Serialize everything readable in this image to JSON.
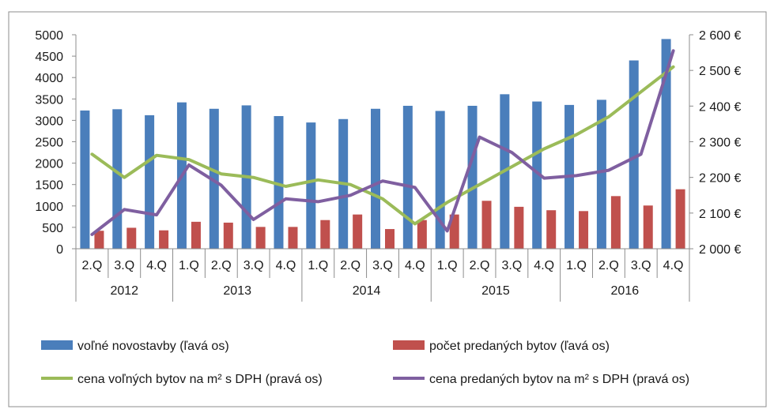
{
  "chart_data": {
    "type": "bar",
    "title": "",
    "quarters": [
      "2.Q",
      "3.Q",
      "4.Q",
      "1.Q",
      "2.Q",
      "3.Q",
      "4.Q",
      "1.Q",
      "2.Q",
      "3.Q",
      "4.Q",
      "1.Q",
      "2.Q",
      "3.Q",
      "4.Q",
      "1.Q",
      "2.Q",
      "3.Q",
      "4.Q"
    ],
    "years": [
      {
        "label": "2012",
        "span": 3
      },
      {
        "label": "2013",
        "span": 4
      },
      {
        "label": "2014",
        "span": 4
      },
      {
        "label": "2015",
        "span": 4
      },
      {
        "label": "2016",
        "span": 4
      }
    ],
    "left_axis": {
      "min": 0,
      "max": 5000,
      "step": 500,
      "ticks": [
        "0",
        "500",
        "1000",
        "1500",
        "2000",
        "2500",
        "3000",
        "3500",
        "4000",
        "4500",
        "5000"
      ]
    },
    "right_axis": {
      "min": 2000,
      "max": 2600,
      "step": 100,
      "ticks": [
        "2 000 €",
        "2 100 €",
        "2 200 €",
        "2 300 €",
        "2 400 €",
        "2 500 €",
        "2 600 €"
      ]
    },
    "series": [
      {
        "name": "voľné novostavby (ľavá os)",
        "kind": "bar",
        "axis": "left",
        "color": "#4a7ebb",
        "values": [
          3230,
          3260,
          3120,
          3420,
          3270,
          3350,
          3100,
          2950,
          3030,
          3270,
          3340,
          3220,
          3340,
          3610,
          3440,
          3360,
          3480,
          4400,
          4900
        ]
      },
      {
        "name": "počet predaných bytov (ľavá os)",
        "kind": "bar",
        "axis": "left",
        "color": "#c0504d",
        "values": [
          420,
          490,
          430,
          630,
          610,
          510,
          510,
          670,
          800,
          460,
          670,
          800,
          1120,
          980,
          900,
          880,
          1230,
          1010,
          1390
        ]
      },
      {
        "name": "cena voľných bytov na m² s DPH (pravá os)",
        "kind": "line",
        "axis": "right",
        "color": "#9bbb59",
        "values": [
          2265,
          2200,
          2262,
          2250,
          2210,
          2200,
          2175,
          2193,
          2180,
          2140,
          2070,
          2130,
          2180,
          2230,
          2280,
          2320,
          2370,
          2440,
          2510
        ]
      },
      {
        "name": "cena predaných bytov na m² s  DPH (pravá os)",
        "kind": "line",
        "axis": "right",
        "color": "#7f5fa0",
        "values": [
          2040,
          2110,
          2095,
          2235,
          2178,
          2082,
          2140,
          2132,
          2150,
          2190,
          2172,
          2050,
          2313,
          2270,
          2198,
          2205,
          2220,
          2265,
          2555
        ]
      }
    ],
    "legend_position": "bottom"
  }
}
